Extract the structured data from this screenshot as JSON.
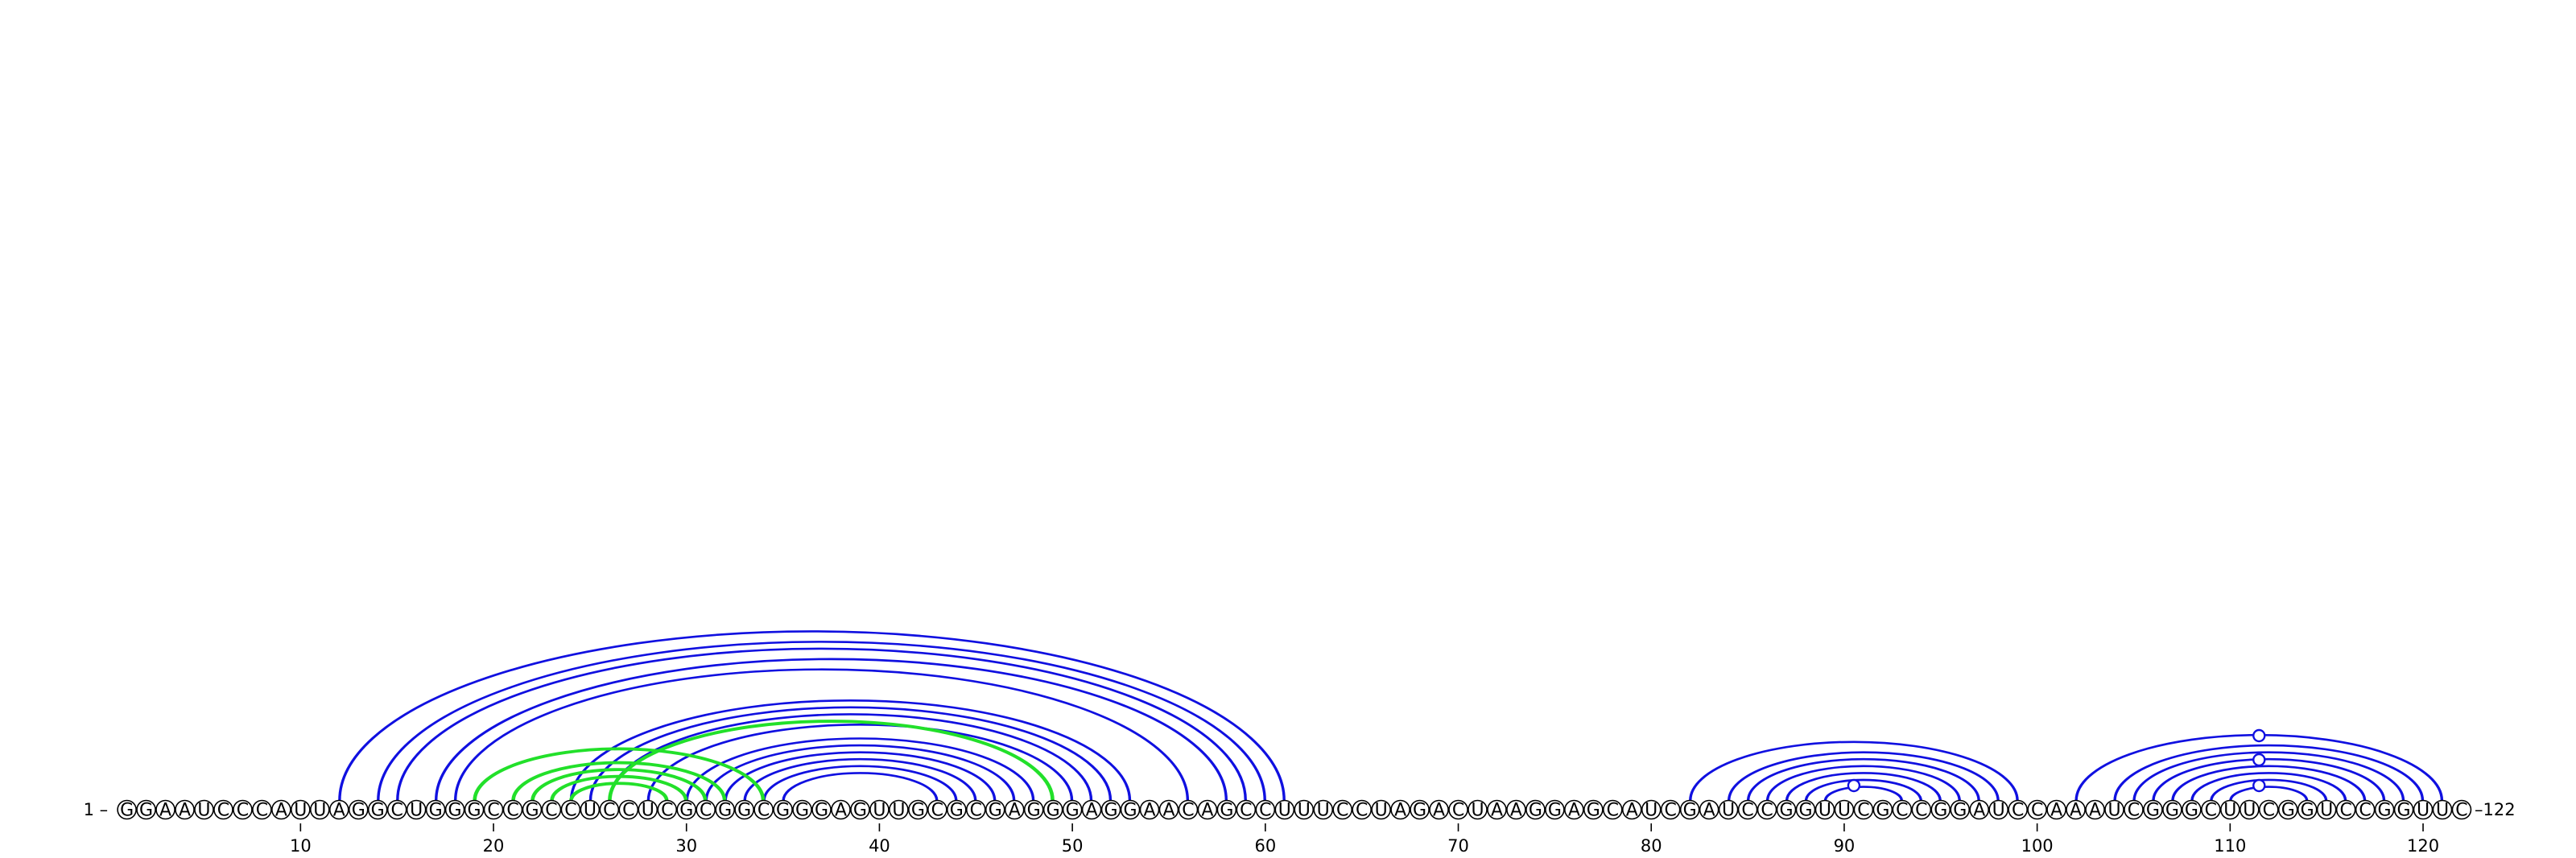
{
  "sequence": "GGAAUCCCAUUAGGCUGGGCCGCCUCCUCGCGGCGGGAGUUGCGCGAGGGAGGAACAGCCUUUCCUAGACUAAGGAGCAUCGAUCCGGUUCGCCGGAUCCAAAUCGGGCUUCGGUCCGGUUC",
  "start_label": "1 –",
  "end_label": "–122",
  "ticks": [
    10,
    20,
    30,
    40,
    50,
    60,
    70,
    80,
    90,
    100,
    110,
    120
  ],
  "colors": {
    "primary_arc": "#1010e0",
    "alternate_arc": "#22e02a",
    "base_outline": "#000000"
  },
  "arc_groups": [
    {
      "name": "long-range-helix",
      "color": "primary",
      "pairs": [
        [
          12,
          61
        ],
        [
          14,
          60
        ],
        [
          15,
          59
        ],
        [
          17,
          58
        ],
        [
          18,
          56
        ]
      ]
    },
    {
      "name": "central-helix",
      "color": "primary",
      "pairs": [
        [
          24,
          53
        ],
        [
          25,
          52
        ],
        [
          26,
          51
        ],
        [
          28,
          50
        ],
        [
          30,
          48
        ],
        [
          31,
          47
        ],
        [
          32,
          46
        ],
        [
          33,
          45
        ],
        [
          34,
          44
        ],
        [
          35,
          43
        ]
      ]
    },
    {
      "name": "alternate-pairs",
      "color": "alternate",
      "pairs": [
        [
          19,
          34
        ],
        [
          21,
          32
        ],
        [
          22,
          31
        ],
        [
          23,
          30
        ],
        [
          24,
          29
        ],
        [
          26,
          49
        ]
      ]
    },
    {
      "name": "hairpin-90",
      "color": "primary",
      "pairs": [
        [
          82,
          99
        ],
        [
          84,
          98
        ],
        [
          85,
          97
        ],
        [
          86,
          96
        ],
        [
          87,
          95
        ],
        [
          88,
          94
        ],
        [
          89,
          93
        ]
      ]
    },
    {
      "name": "hairpin-111",
      "color": "primary",
      "pairs": [
        [
          102,
          121
        ],
        [
          104,
          120
        ],
        [
          105,
          119
        ],
        [
          106,
          118
        ],
        [
          107,
          117
        ],
        [
          108,
          116
        ],
        [
          109,
          115
        ],
        [
          110,
          114
        ]
      ]
    }
  ],
  "loop_markers": [
    90.5,
    111.5,
    111.5,
    111.5
  ]
}
